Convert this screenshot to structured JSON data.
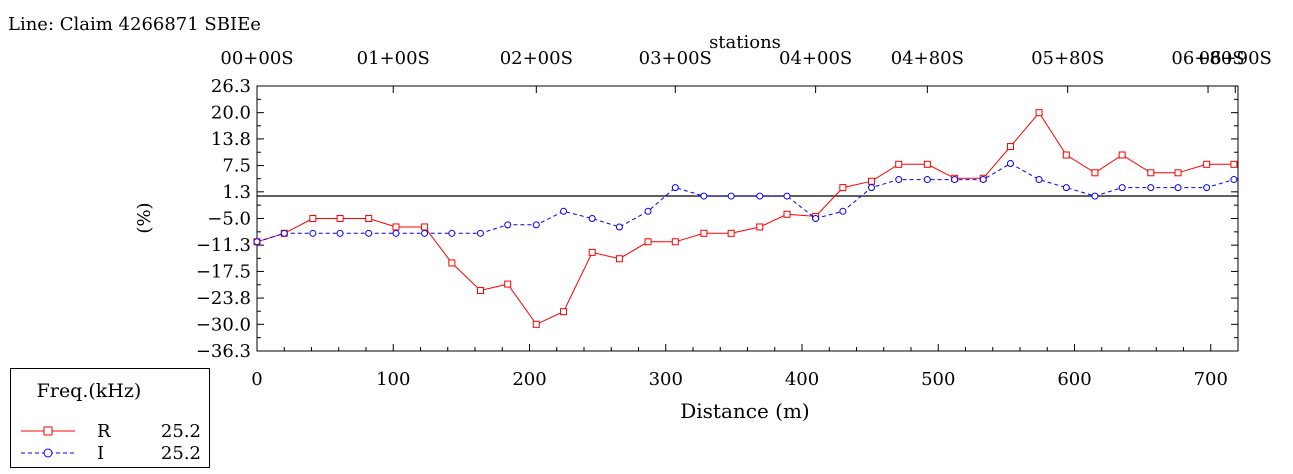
{
  "line_title": "Line: Claim 4266871 SBIEe",
  "chart_data": {
    "type": "line",
    "title": "",
    "top_axis_label": "stations",
    "xlabel": "Distance (m)",
    "ylabel": "(%)",
    "xlim": [
      0,
      720
    ],
    "ylim": [
      -36.3,
      26.3
    ],
    "x_ticks": [
      "0",
      "100",
      "200",
      "300",
      "400",
      "500",
      "600",
      "700"
    ],
    "y_ticks": [
      "26.3",
      "20.0",
      "13.8",
      "7.5",
      "1.3",
      "-5.0",
      "-11.3",
      "-17.5",
      "-23.8",
      "-30.0",
      "-36.3"
    ],
    "station_ticks": [
      {
        "x": 0,
        "label": "00+00S"
      },
      {
        "x": 100,
        "label": "01+00S"
      },
      {
        "x": 205,
        "label": "02+00S"
      },
      {
        "x": 307,
        "label": "03+00S"
      },
      {
        "x": 410,
        "label": "04+00S"
      },
      {
        "x": 492,
        "label": "04+80S"
      },
      {
        "x": 595,
        "label": "05+80S"
      },
      {
        "x": 698,
        "label": "06+80S"
      },
      {
        "x": 718,
        "label": "06+90S"
      }
    ],
    "reference_line_y": 0,
    "x": [
      0,
      20,
      41,
      61,
      82,
      102,
      123,
      143,
      164,
      184,
      205,
      225,
      246,
      266,
      287,
      307,
      328,
      348,
      369,
      389,
      410,
      430,
      451,
      471,
      492,
      512,
      533,
      553,
      574,
      594,
      615,
      635,
      656,
      676,
      697,
      717
    ],
    "series": [
      {
        "name": "R",
        "color": "#ff0000",
        "marker": "square",
        "values": [
          -10.5,
          -8.5,
          -5.0,
          -5.0,
          -5.0,
          -7.0,
          -7.0,
          -15.5,
          -22.0,
          -20.5,
          -30.0,
          -27.0,
          -13.0,
          -14.5,
          -10.5,
          -10.5,
          -8.5,
          -8.5,
          -7.0,
          -4.0,
          -4.5,
          2.3,
          3.8,
          7.8,
          7.8,
          4.5,
          4.5,
          12.0,
          20.0,
          10.0,
          5.8,
          10.0,
          5.8,
          5.8,
          7.8,
          7.8
        ]
      },
      {
        "name": "I",
        "color": "#0000ff",
        "marker": "circle",
        "values": [
          -10.5,
          -8.5,
          -8.5,
          -8.5,
          -8.5,
          -8.5,
          -8.5,
          -8.5,
          -8.5,
          -6.5,
          -6.5,
          -3.3,
          -5.0,
          -7.0,
          -3.3,
          2.3,
          0.3,
          0.3,
          0.3,
          0.3,
          -5.0,
          -3.3,
          2.3,
          4.2,
          4.2,
          4.2,
          4.2,
          8.0,
          4.2,
          2.3,
          0.3,
          2.3,
          2.3,
          2.3,
          2.3,
          4.2
        ]
      }
    ],
    "legend": {
      "title": "Freq.(kHz)",
      "placement": "bottom-left",
      "entries": [
        {
          "name": "R",
          "value": "25.2",
          "color": "#ff0000",
          "marker": "square"
        },
        {
          "name": "I",
          "value": "25.2",
          "color": "#0000ff",
          "marker": "circle"
        }
      ]
    }
  }
}
